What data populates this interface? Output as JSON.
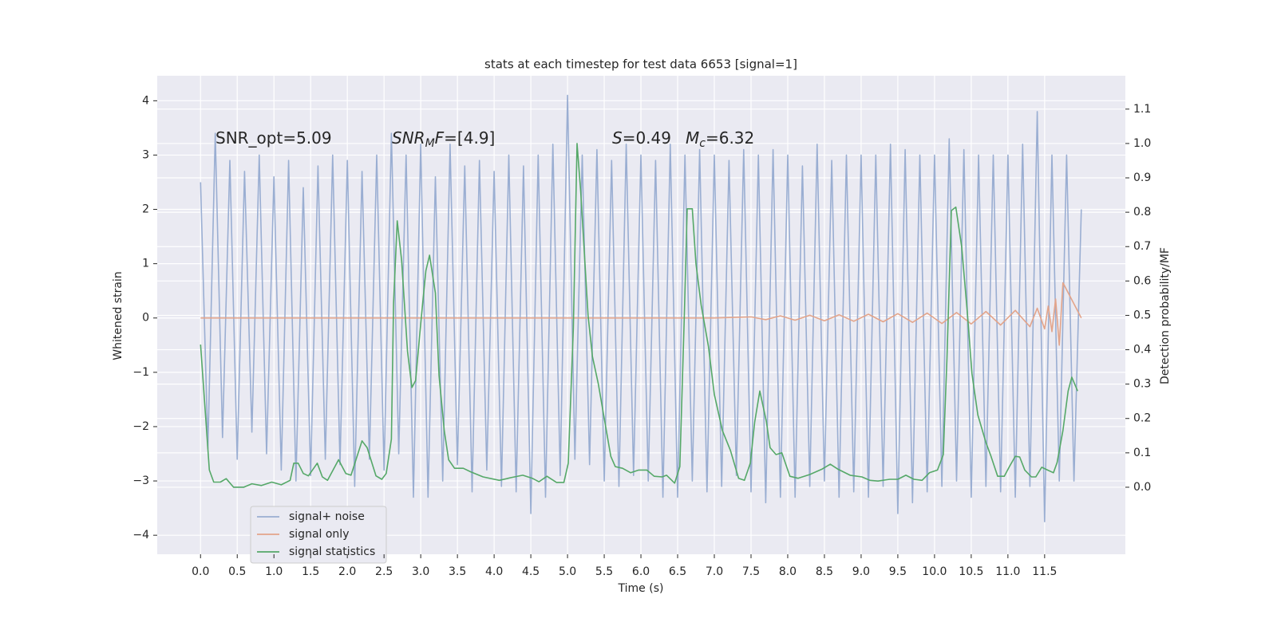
{
  "chart_data": {
    "type": "line",
    "title": "stats at each timestep for test data 6653 [signal=1]",
    "x_label": "Time (s)",
    "y_label": "Whitened strain",
    "y2_label": "Detection probability/MF",
    "annotations": [
      [
        "SNR_opt=5.09"
      ],
      [
        "SNR",
        "M",
        "F",
        "=[4.9]"
      ],
      [
        "S",
        "=0.49"
      ],
      [
        "M",
        "c",
        "=6.32"
      ]
    ],
    "grid": true,
    "legend": "lower left",
    "xlim": [
      -0.59,
      12.6
    ],
    "ylim": [
      -4.35,
      4.46
    ],
    "y2lim": [
      -0.195,
      1.197
    ],
    "xticks": [
      {
        "value": 0,
        "label": "0.0"
      },
      0.5,
      {
        "value": 1,
        "label": "1.0"
      },
      1.5,
      {
        "value": 2,
        "label": "2.0"
      },
      2.5,
      {
        "value": 3,
        "label": "3.0"
      },
      3.5,
      {
        "value": 4,
        "label": "4.0"
      },
      4.5,
      {
        "value": 5,
        "label": "5.0"
      },
      5.5,
      {
        "value": 6,
        "label": "6.0"
      },
      6.5,
      {
        "value": 7,
        "label": "7.0"
      },
      7.5,
      {
        "value": 8,
        "label": "8.0"
      },
      8.5,
      {
        "value": 9,
        "label": "9.0"
      },
      9.5,
      {
        "value": 10,
        "label": "10.0"
      },
      10.5,
      {
        "value": 11,
        "label": "11.0"
      },
      11.5
    ],
    "yticks": [
      {
        "value": -4,
        "label": "−4"
      },
      {
        "value": -3,
        "label": "−3"
      },
      {
        "value": -2,
        "label": "−2"
      },
      {
        "value": -1,
        "label": "−1"
      },
      0,
      1,
      2,
      3,
      4
    ],
    "y2ticks": [
      {
        "value": 0,
        "label": "0.0"
      },
      0.1,
      0.2,
      0.3,
      0.4,
      0.5,
      0.6,
      0.7,
      0.8,
      0.9,
      {
        "value": 1,
        "label": "1.0"
      },
      1.1
    ],
    "series": [
      {
        "name": "signal+ noise",
        "color": "#9aaed2",
        "x": [
          0.0,
          0.1,
          0.2,
          0.3,
          0.4,
          0.5,
          0.6,
          0.7,
          0.8,
          0.9,
          1.0,
          1.1,
          1.2,
          1.3,
          1.4,
          1.5,
          1.6,
          1.7,
          1.8,
          1.9,
          2.0,
          2.1,
          2.2,
          2.3,
          2.4,
          2.5,
          2.6,
          2.7,
          2.8,
          2.9,
          3.0,
          3.1,
          3.2,
          3.3,
          3.4,
          3.5,
          3.6,
          3.7,
          3.8,
          3.9,
          4.0,
          4.1,
          4.2,
          4.3,
          4.4,
          4.5,
          4.6,
          4.7,
          4.8,
          4.9,
          5.0,
          5.1,
          5.2,
          5.3,
          5.4,
          5.5,
          5.6,
          5.7,
          5.8,
          5.9,
          6.0,
          6.1,
          6.2,
          6.3,
          6.4,
          6.5,
          6.6,
          6.7,
          6.8,
          6.9,
          7.0,
          7.1,
          7.2,
          7.3,
          7.4,
          7.5,
          7.6,
          7.7,
          7.8,
          7.9,
          8.0,
          8.1,
          8.2,
          8.3,
          8.4,
          8.5,
          8.6,
          8.7,
          8.8,
          8.9,
          9.0,
          9.1,
          9.2,
          9.3,
          9.4,
          9.5,
          9.6,
          9.7,
          9.8,
          9.9,
          10.0,
          10.1,
          10.2,
          10.3,
          10.4,
          10.5,
          10.6,
          10.7,
          10.8,
          10.9,
          11.0,
          11.1,
          11.2,
          11.3,
          11.4,
          11.5,
          11.6,
          11.7,
          11.8,
          11.9,
          12.0
        ],
        "values": [
          2.5,
          -2.4,
          3.4,
          -2.2,
          2.9,
          -2.6,
          2.7,
          -2.1,
          3.0,
          -2.5,
          2.6,
          -2.8,
          2.9,
          -3.0,
          2.4,
          -2.9,
          2.8,
          -2.6,
          3.0,
          -2.7,
          2.9,
          -3.1,
          2.7,
          -2.6,
          3.0,
          -2.8,
          3.4,
          -2.5,
          3.0,
          -3.3,
          3.2,
          -3.3,
          2.6,
          -3.0,
          3.2,
          -2.7,
          2.8,
          -3.2,
          2.9,
          -2.8,
          2.7,
          -3.1,
          3.0,
          -3.2,
          2.8,
          -3.6,
          3.0,
          -3.3,
          3.2,
          -2.9,
          4.1,
          -2.6,
          3.0,
          -2.7,
          3.1,
          -3.0,
          2.9,
          -3.1,
          3.2,
          -2.9,
          3.0,
          -3.0,
          2.9,
          -3.3,
          3.2,
          -3.3,
          3.0,
          -3.0,
          3.1,
          -3.2,
          3.0,
          -3.1,
          2.9,
          -2.9,
          3.1,
          -3.2,
          3.0,
          -3.4,
          3.1,
          -3.3,
          3.0,
          -3.3,
          2.8,
          -3.1,
          3.2,
          -3.0,
          2.9,
          -3.3,
          3.0,
          -3.2,
          3.0,
          -3.3,
          3.0,
          -3.1,
          3.2,
          -3.6,
          3.1,
          -3.4,
          3.0,
          -3.2,
          3.0,
          -3.1,
          3.3,
          -3.0,
          3.1,
          -3.3,
          3.0,
          -3.1,
          3.0,
          -3.2,
          3.0,
          -3.3,
          3.2,
          -3.1,
          3.8,
          -3.75,
          3.0,
          -3.0,
          3.0,
          -3.0,
          2.0
        ]
      },
      {
        "name": "signal only",
        "color": "#e3a48a",
        "x": [
          0.0,
          7.0,
          7.5,
          7.7,
          7.9,
          8.1,
          8.3,
          8.5,
          8.7,
          8.9,
          9.1,
          9.3,
          9.5,
          9.7,
          9.9,
          10.1,
          10.3,
          10.5,
          10.7,
          10.9,
          11.1,
          11.3,
          11.4,
          11.5,
          11.55,
          11.6,
          11.65,
          11.7,
          11.75,
          12.0
        ],
        "values": [
          0,
          0,
          0.02,
          -0.03,
          0.04,
          -0.04,
          0.05,
          -0.05,
          0.06,
          -0.06,
          0.07,
          -0.07,
          0.08,
          -0.08,
          0.09,
          -0.1,
          0.1,
          -0.11,
          0.12,
          -0.13,
          0.14,
          -0.16,
          0.18,
          -0.2,
          0.22,
          -0.25,
          0.35,
          -0.5,
          0.65,
          0
        ]
      },
      {
        "name": "signal statistics",
        "color": "#55a868",
        "axis": "y2",
        "x": [
          0,
          0.12,
          0.18,
          0.27,
          0.35,
          0.45,
          0.59,
          0.7,
          0.83,
          0.97,
          1.1,
          1.22,
          1.27,
          1.33,
          1.4,
          1.47,
          1.59,
          1.66,
          1.73,
          1.88,
          1.98,
          2.05,
          2.2,
          2.27,
          2.39,
          2.47,
          2.53,
          2.6,
          2.63,
          2.68,
          2.74,
          2.82,
          2.88,
          2.93,
          3.01,
          3.07,
          3.12,
          3.2,
          3.25,
          3.32,
          3.38,
          3.46,
          3.58,
          3.68,
          3.85,
          4.07,
          4.23,
          4.39,
          4.52,
          4.61,
          4.72,
          4.85,
          4.95,
          5.01,
          5.08,
          5.13,
          5.18,
          5.28,
          5.34,
          5.42,
          5.5,
          5.59,
          5.65,
          5.75,
          5.86,
          5.97,
          6.08,
          6.18,
          6.29,
          6.35,
          6.46,
          6.53,
          6.59,
          6.63,
          6.7,
          6.75,
          6.82,
          6.92,
          7.0,
          7.11,
          7.22,
          7.33,
          7.41,
          7.49,
          7.55,
          7.62,
          7.71,
          7.76,
          7.84,
          7.92,
          8.03,
          8.14,
          8.3,
          8.47,
          8.58,
          8.68,
          8.85,
          9.01,
          9.12,
          9.23,
          9.39,
          9.5,
          9.61,
          9.72,
          9.83,
          9.93,
          10.04,
          10.12,
          10.17,
          10.23,
          10.29,
          10.37,
          10.45,
          10.51,
          10.59,
          10.7,
          10.77,
          10.86,
          10.95,
          11.02,
          11.1,
          11.16,
          11.23,
          11.32,
          11.38,
          11.46,
          11.54,
          11.62,
          11.67,
          11.75,
          11.82,
          11.87,
          11.95
        ],
        "values": [
          0.415,
          0.05,
          0.015,
          0.015,
          0.025,
          0.0,
          0.0,
          0.01,
          0.005,
          0.015,
          0.007,
          0.02,
          0.07,
          0.07,
          0.04,
          0.033,
          0.07,
          0.03,
          0.02,
          0.08,
          0.04,
          0.035,
          0.135,
          0.115,
          0.033,
          0.023,
          0.04,
          0.14,
          0.535,
          0.775,
          0.66,
          0.395,
          0.29,
          0.31,
          0.5,
          0.63,
          0.675,
          0.565,
          0.325,
          0.165,
          0.08,
          0.055,
          0.055,
          0.045,
          0.03,
          0.02,
          0.028,
          0.035,
          0.026,
          0.016,
          0.032,
          0.014,
          0.014,
          0.07,
          0.465,
          1.0,
          0.86,
          0.5,
          0.38,
          0.3,
          0.2,
          0.09,
          0.06,
          0.055,
          0.042,
          0.05,
          0.05,
          0.032,
          0.03,
          0.035,
          0.012,
          0.06,
          0.49,
          0.81,
          0.81,
          0.65,
          0.53,
          0.41,
          0.27,
          0.165,
          0.107,
          0.026,
          0.02,
          0.07,
          0.19,
          0.28,
          0.19,
          0.115,
          0.095,
          0.1,
          0.032,
          0.026,
          0.037,
          0.053,
          0.067,
          0.053,
          0.035,
          0.03,
          0.02,
          0.018,
          0.023,
          0.023,
          0.035,
          0.023,
          0.02,
          0.042,
          0.05,
          0.095,
          0.375,
          0.805,
          0.815,
          0.7,
          0.5,
          0.33,
          0.21,
          0.13,
          0.09,
          0.032,
          0.032,
          0.06,
          0.09,
          0.088,
          0.05,
          0.03,
          0.03,
          0.058,
          0.05,
          0.042,
          0.072,
          0.165,
          0.28,
          0.32,
          0.28
        ]
      }
    ]
  }
}
